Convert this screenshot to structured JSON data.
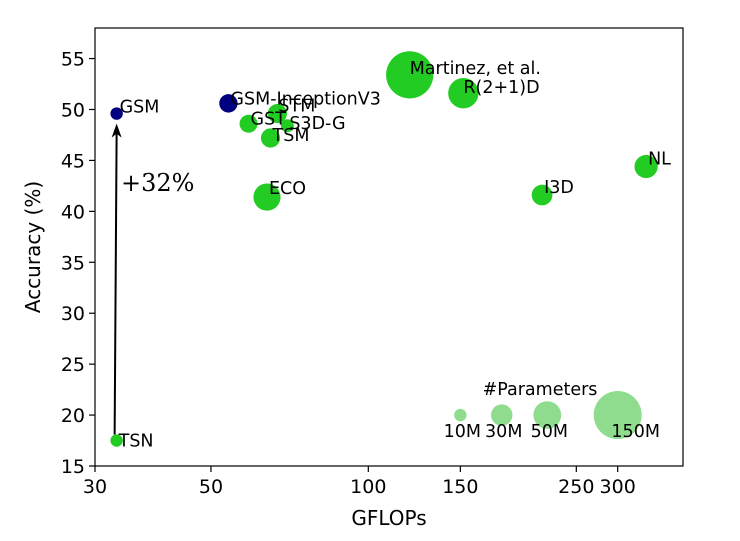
{
  "chart_data": {
    "type": "scatter",
    "xlabel": "GFLOPs",
    "ylabel": "Accuracy (%)",
    "xscale": "log",
    "xlim": [
      30,
      400
    ],
    "ylim": [
      15,
      58
    ],
    "x_ticks": [
      30,
      50,
      100,
      150,
      250,
      300
    ],
    "x_tick_labels": [
      "30",
      "50",
      "100",
      "150",
      "250",
      "300"
    ],
    "y_ticks": [
      15,
      20,
      25,
      30,
      35,
      40,
      45,
      50,
      55
    ],
    "y_tick_labels": [
      "15",
      "20",
      "25",
      "30",
      "35",
      "40",
      "45",
      "50",
      "55"
    ],
    "grid": false,
    "colors": {
      "default": "#22cc22",
      "highlight": "#000080",
      "legend": "#8fdc8f"
    },
    "points": [
      {
        "label": "TSN",
        "x": 33,
        "y": 17.5,
        "params_m": 10,
        "color": "default"
      },
      {
        "label": "GSM",
        "x": 33,
        "y": 49.6,
        "params_m": 10,
        "color": "highlight"
      },
      {
        "label": "GSM-InceptionV3",
        "x": 54,
        "y": 50.6,
        "params_m": 22,
        "color": "highlight"
      },
      {
        "label": "GST",
        "x": 59,
        "y": 48.6,
        "params_m": 21,
        "color": "default"
      },
      {
        "label": "STM",
        "x": 67,
        "y": 49.6,
        "params_m": 24,
        "color": "default"
      },
      {
        "label": "S3D-G",
        "x": 70,
        "y": 48.4,
        "params_m": 11,
        "color": "default"
      },
      {
        "label": "TSM",
        "x": 65,
        "y": 47.2,
        "params_m": 24,
        "color": "default"
      },
      {
        "label": "ECO",
        "x": 64,
        "y": 41.4,
        "params_m": 48,
        "color": "default"
      },
      {
        "label": "Martinez, et al.",
        "x": 120,
        "y": 53.4,
        "params_m": 145,
        "color": "default"
      },
      {
        "label": "R(2+1)D",
        "x": 152,
        "y": 51.6,
        "params_m": 60,
        "color": "default"
      },
      {
        "label": "I3D",
        "x": 215,
        "y": 41.6,
        "params_m": 28,
        "color": "default"
      },
      {
        "label": "NL",
        "x": 340,
        "y": 44.4,
        "params_m": 35,
        "color": "default"
      }
    ],
    "annotation": {
      "text": "+32%",
      "from": {
        "x": 33,
        "y": 17.5
      },
      "to": {
        "x": 33,
        "y": 49.6
      }
    },
    "legend": {
      "title": "#Parameters",
      "y": 20,
      "items": [
        {
          "label": "10M",
          "x": 150,
          "params_m": 10
        },
        {
          "label": "30M",
          "x": 180,
          "params_m": 30
        },
        {
          "label": "50M",
          "x": 220,
          "params_m": 50
        },
        {
          "label": "150M",
          "x": 300,
          "params_m": 150
        }
      ]
    }
  }
}
